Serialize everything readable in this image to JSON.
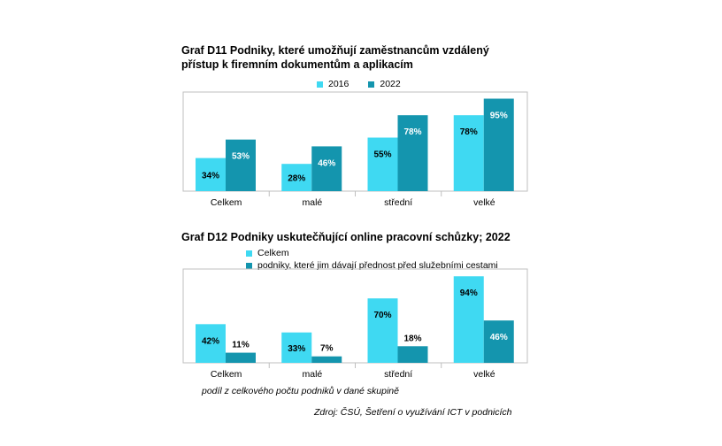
{
  "colors": {
    "light": "#3FD9F2",
    "dark": "#1495AE",
    "border": "#BFBFBF"
  },
  "chart_data": [
    {
      "type": "bar",
      "title_line1": "Graf D11 Podniky, které umožňují zaměstnancům vzdálený",
      "title_line2": "přístup k firemním dokumentům a aplikacím",
      "categories": [
        "Celkem",
        "malé",
        "střední",
        "velké"
      ],
      "series": [
        {
          "name": "2016",
          "values": [
            34,
            28,
            55,
            78
          ],
          "labels": [
            "34%",
            "28%",
            "55%",
            "78%"
          ]
        },
        {
          "name": "2022",
          "values": [
            53,
            46,
            78,
            95
          ],
          "labels": [
            "53%",
            "46%",
            "78%",
            "95%"
          ]
        }
      ],
      "ylim": [
        0,
        100
      ],
      "legend": "top"
    },
    {
      "type": "bar",
      "title_line1": "Graf D12 Podniky uskutečňující online pracovní schůzky; 2022",
      "categories": [
        "Celkem",
        "malé",
        "střední",
        "velké"
      ],
      "series": [
        {
          "name": "Celkem",
          "values": [
            42,
            33,
            70,
            94
          ],
          "labels": [
            "42%",
            "33%",
            "70%",
            "94%"
          ]
        },
        {
          "name": "podniky, které jim dávají přednost před služebními cestami",
          "values": [
            11,
            7,
            18,
            46
          ],
          "labels": [
            "11%",
            "7%",
            "18%",
            "46%"
          ]
        }
      ],
      "ylim": [
        0,
        100
      ],
      "legend": "top"
    }
  ],
  "notes": {
    "share": "podíl z celkového počtu podniků v dané skupině",
    "source": "Zdroj: ČSÚ, Šetření o využívání ICT v podnicích"
  }
}
